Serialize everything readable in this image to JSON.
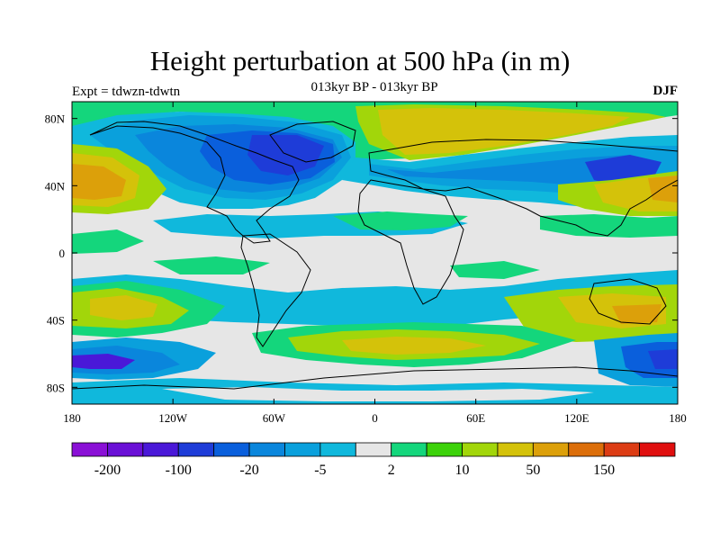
{
  "header": {
    "title": "Height perturbation at 500 hPa (in m)",
    "left_string": "Expt = tdwzn-tdwtn",
    "center_string": "013kyr BP - 013kyr BP",
    "right_string": "DJF"
  },
  "map": {
    "projection": "cylindrical-equidistant",
    "lon_range": [
      -180,
      180
    ],
    "lat_range": [
      -90,
      90
    ],
    "x_ticks": [
      "180",
      "120W",
      "60W",
      "0",
      "60E",
      "120E",
      "180"
    ],
    "y_ticks": [
      "80N",
      "40N",
      "0",
      "40S",
      "80S"
    ],
    "background_color": "#e6e6e6",
    "coastline_color": "#000000"
  },
  "colorbar": {
    "colors": [
      "#8a10d6",
      "#6a10d6",
      "#4a18d8",
      "#1e3cd8",
      "#0a5fdc",
      "#0a86dc",
      "#0aa0dc",
      "#10b8dc",
      "#e6e6e6",
      "#14d67c",
      "#3cd20a",
      "#a2d60a",
      "#d4c20a",
      "#dca00a",
      "#dc6e0a",
      "#dc3c14",
      "#e00f0f"
    ],
    "labels": [
      "-200",
      "-100",
      "-20",
      "-5",
      "2",
      "10",
      "50",
      "150"
    ]
  }
}
